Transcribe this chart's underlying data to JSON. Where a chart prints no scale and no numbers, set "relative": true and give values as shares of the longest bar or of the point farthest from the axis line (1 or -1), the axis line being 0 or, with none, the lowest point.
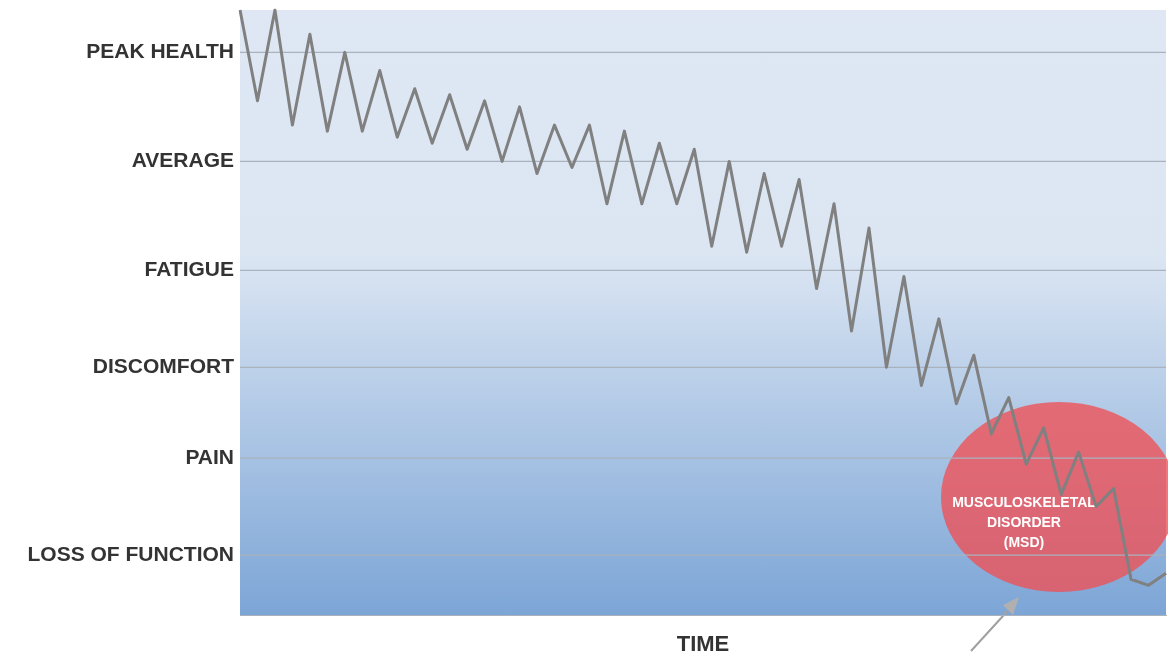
{
  "chart_data": {
    "type": "line",
    "xlabel": "TIME",
    "relative": true,
    "categories": [
      null,
      null,
      null,
      null,
      null,
      null,
      null,
      null,
      null,
      null,
      null,
      null,
      null,
      null,
      null,
      null,
      null,
      null,
      null,
      null,
      null,
      null,
      null,
      null,
      null,
      null,
      null,
      null,
      null,
      null,
      null,
      null,
      null,
      null,
      null,
      null,
      null,
      null,
      null,
      null,
      null,
      null,
      null,
      null,
      null,
      null,
      null,
      null,
      null,
      null,
      null,
      null,
      null,
      null
    ],
    "series": [
      {
        "color": "#808080",
        "values": [
          1.0,
          0.85,
          1.0,
          0.81,
          0.96,
          0.8,
          0.93,
          0.8,
          0.9,
          0.79,
          0.87,
          0.78,
          0.86,
          0.77,
          0.85,
          0.75,
          0.84,
          0.73,
          0.81,
          0.74,
          0.81,
          0.68,
          0.8,
          0.68,
          0.78,
          0.68,
          0.77,
          0.61,
          0.75,
          0.6,
          0.73,
          0.61,
          0.72,
          0.54,
          0.68,
          0.47,
          0.64,
          0.41,
          0.56,
          0.38,
          0.49,
          0.35,
          0.43,
          0.3,
          0.36,
          0.25,
          0.31,
          0.2,
          0.27,
          0.18,
          0.21,
          0.06,
          0.05,
          0.07
        ]
      }
    ],
    "ref_lines": [
      {
        "axis": "y",
        "value": 0.1,
        "label": "LOSS OF FUNCTION"
      },
      {
        "axis": "y",
        "value": 0.26,
        "label": "PAIN"
      },
      {
        "axis": "y",
        "value": 0.41,
        "label": "DISCOMFORT"
      },
      {
        "axis": "y",
        "value": 0.57,
        "label": "FATIGUE"
      },
      {
        "axis": "y",
        "value": 0.75,
        "label": "AVERAGE"
      },
      {
        "axis": "y",
        "value": 0.93,
        "label": "PEAK HEALTH"
      }
    ],
    "marker": "none",
    "line_style": "solid",
    "annotations": [
      "MUSCULOSKELETAL\nDISORDER\n(MSD)"
    ]
  }
}
